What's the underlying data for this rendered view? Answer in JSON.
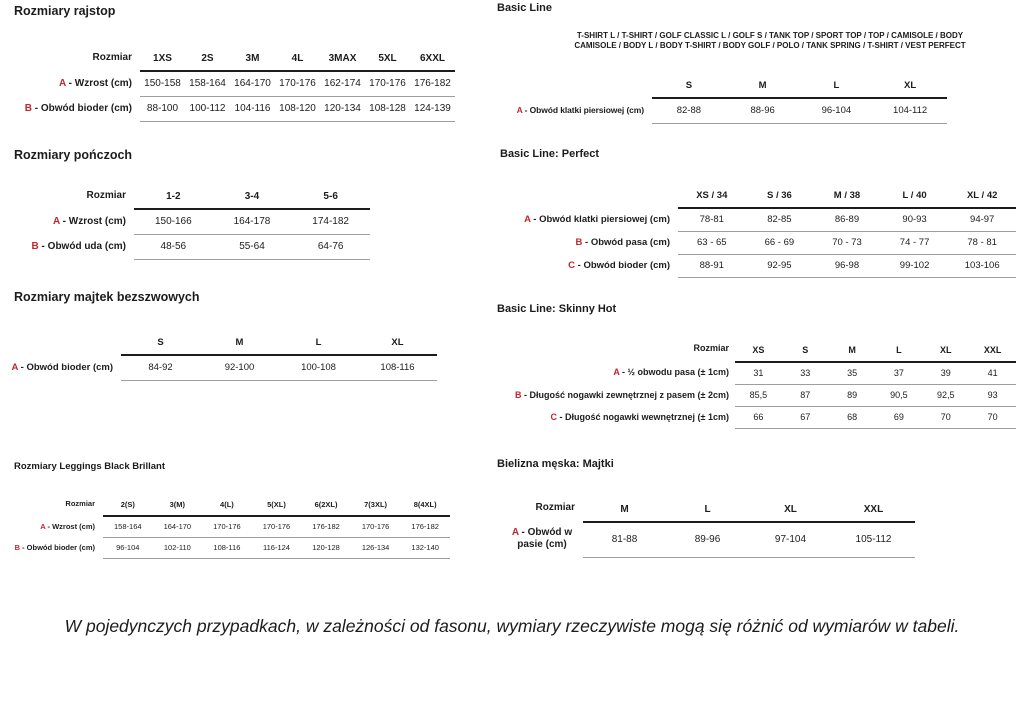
{
  "page": {
    "accent_red": "#c1272d",
    "footnote": "W pojedynczych przypadkach, w zależności od fasonu, wymiary rzeczywiste mogą się różnić od wymiarów w tabeli."
  },
  "sections": {
    "rajstop": {
      "title": "Rozmiary rajstop",
      "table": {
        "size_label": "Rozmiar",
        "columns": [
          "1XS",
          "2S",
          "3M",
          "4L",
          "3MAX",
          "5XL",
          "6XXL"
        ],
        "rows": [
          {
            "letter": "A",
            "label": "Wzrost (cm)",
            "values": [
              "150-158",
              "158-164",
              "164-170",
              "170-176",
              "162-174",
              "170-176",
              "176-182"
            ]
          },
          {
            "letter": "B",
            "label": "Obwód bioder (cm)",
            "values": [
              "88-100",
              "100-112",
              "104-116",
              "108-120",
              "120-134",
              "108-128",
              "124-139"
            ]
          }
        ]
      }
    },
    "ponczochy": {
      "title": "Rozmiary pończoch",
      "table": {
        "size_label": "Rozmiar",
        "columns": [
          "1-2",
          "3-4",
          "5-6"
        ],
        "rows": [
          {
            "letter": "A",
            "label": "Wzrost (cm)",
            "values": [
              "150-166",
              "164-178",
              "174-182"
            ]
          },
          {
            "letter": "B",
            "label": "Obwód uda (cm)",
            "values": [
              "48-56",
              "55-64",
              "64-76"
            ]
          }
        ]
      }
    },
    "majtki_bezszwowe": {
      "title": "Rozmiary majtek bezszwowych",
      "table": {
        "size_label": "",
        "columns": [
          "S",
          "M",
          "L",
          "XL"
        ],
        "rows": [
          {
            "letter": "A",
            "label": "Obwód bioder (cm)",
            "values": [
              "84-92",
              "92-100",
              "100-108",
              "108-116"
            ]
          }
        ]
      }
    },
    "leggings": {
      "title": "Rozmiary Leggings Black Brillant",
      "table": {
        "size_label": "Rozmiar",
        "columns": [
          "2(S)",
          "3(M)",
          "4(L)",
          "5(XL)",
          "6(2XL)",
          "7(3XL)",
          "8(4XL)"
        ],
        "rows": [
          {
            "letter": "A",
            "label": "Wzrost (cm)",
            "values": [
              "158-164",
              "164-170",
              "170-176",
              "170-176",
              "176-182",
              "170-176",
              "176-182"
            ]
          },
          {
            "letter": "B",
            "label": "Obwód bioder (cm)",
            "values": [
              "96-104",
              "102-110",
              "108-116",
              "116-124",
              "120-128",
              "126-134",
              "132-140"
            ]
          }
        ]
      }
    },
    "basic_line": {
      "title": "Basic Line",
      "products_line1": "T-SHIRT L / T-SHIRT / GOLF CLASSIC L / GOLF S / TANK TOP / SPORT TOP / TOP / CAMISOLE / BODY",
      "products_line2": "CAMISOLE / BODY L / BODY T-SHIRT / BODY GOLF / POLO / TANK SPRING / T-SHIRT / VEST PERFECT",
      "table": {
        "size_label": "",
        "columns": [
          "S",
          "M",
          "L",
          "XL"
        ],
        "rows": [
          {
            "letter": "A",
            "label": "Obwód klatki piersiowej (cm)",
            "values": [
              "82-88",
              "88-96",
              "96-104",
              "104-112"
            ]
          }
        ]
      }
    },
    "perfect": {
      "title": "Basic Line: Perfect",
      "table": {
        "size_label": "",
        "columns": [
          "XS / 34",
          "S / 36",
          "M / 38",
          "L / 40",
          "XL / 42"
        ],
        "rows": [
          {
            "letter": "A",
            "label": "Obwód klatki piersiowej (cm)",
            "values": [
              "78-81",
              "82-85",
              "86-89",
              "90-93",
              "94-97"
            ]
          },
          {
            "letter": "B",
            "label": "Obwód pasa (cm)",
            "values": [
              "63 - 65",
              "66 - 69",
              "70 - 73",
              "74 - 77",
              "78 - 81"
            ]
          },
          {
            "letter": "C",
            "label": "Obwód bioder (cm)",
            "values": [
              "88-91",
              "92-95",
              "96-98",
              "99-102",
              "103-106"
            ]
          }
        ]
      }
    },
    "skinny_hot": {
      "title": "Basic Line: Skinny Hot",
      "table": {
        "size_label": "Rozmiar",
        "columns": [
          "XS",
          "S",
          "M",
          "L",
          "XL",
          "XXL"
        ],
        "rows": [
          {
            "letter": "A",
            "label": "½ obwodu pasa (± 1cm)",
            "values": [
              "31",
              "33",
              "35",
              "37",
              "39",
              "41"
            ]
          },
          {
            "letter": "B",
            "label": "Długość nogawki zewnętrznej z pasem (± 2cm)",
            "values": [
              "85,5",
              "87",
              "89",
              "90,5",
              "92,5",
              "93"
            ]
          },
          {
            "letter": "C",
            "label": "Długość nogawki wewnętrznej (± 1cm)",
            "values": [
              "66",
              "67",
              "68",
              "69",
              "70",
              "70"
            ]
          }
        ]
      }
    },
    "bielizna_meska": {
      "title": "Bielizna męska: Majtki",
      "table": {
        "size_label": "Rozmiar",
        "columns": [
          "M",
          "L",
          "XL",
          "XXL"
        ],
        "rows": [
          {
            "letter": "A",
            "label": "Obwód w pasie (cm)",
            "values": [
              "81-88",
              "89-96",
              "97-104",
              "105-112"
            ]
          }
        ]
      }
    }
  }
}
